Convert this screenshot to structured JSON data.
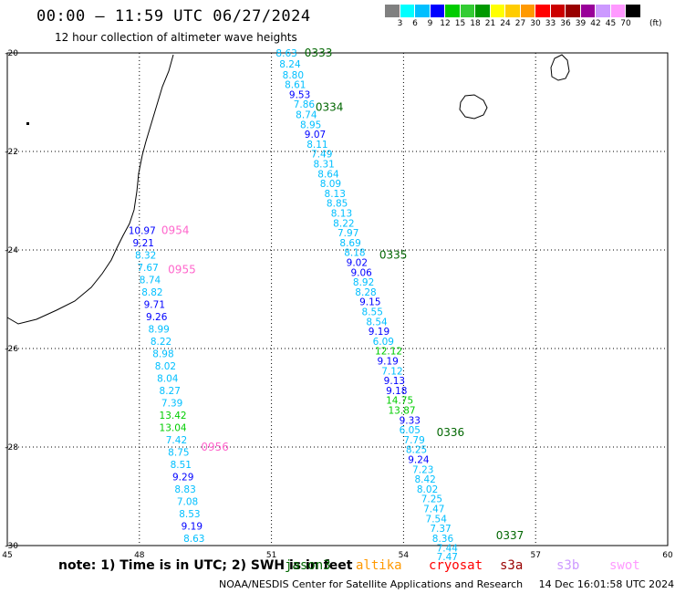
{
  "title": "00:00 – 11:59 UTC 06/27/2024",
  "subtitle": "12 hour collection of altimeter wave heights",
  "legend": {
    "ticks": [
      "3",
      "6",
      "9",
      "12",
      "15",
      "18",
      "21",
      "24",
      "27",
      "30",
      "33",
      "36",
      "39",
      "42",
      "45",
      "70"
    ],
    "unit": "(ft)",
    "colors": [
      "#808080",
      "#00ffff",
      "#00bfff",
      "#0000ff",
      "#00cc00",
      "#33cc33",
      "#009900",
      "#ffff00",
      "#ffcc00",
      "#ff9900",
      "#ff0000",
      "#cc0000",
      "#990000",
      "#990099",
      "#cc99ff",
      "#ff99ff",
      "#000000"
    ]
  },
  "note": "note:  1) Time is in UTC;  2) SWH is in feet",
  "satellites": [
    {
      "name": "jason3",
      "color": "#006600"
    },
    {
      "name": "altika",
      "color": "#ff9900"
    },
    {
      "name": "cryosat",
      "color": "#ff0000"
    },
    {
      "name": "s3a",
      "color": "#990000"
    },
    {
      "name": "s3b",
      "color": "#cc99ff"
    },
    {
      "name": "swot",
      "color": "#ff99ff"
    }
  ],
  "footer": {
    "agency": "NOAA/NESDIS Center for Satellite Applications and Research",
    "timestamp": "14 Dec 16:01:58 UTC 2024"
  },
  "map": {
    "lon_ticks": [
      "45",
      "48",
      "51",
      "54",
      "57",
      "60"
    ],
    "lat_ticks": [
      "-20",
      "-22",
      "-24",
      "-26",
      "-28",
      "-30"
    ]
  },
  "tracks": [
    {
      "satellite": "jason3",
      "color": "#006600",
      "time_labels": [
        {
          "lat": -20.0,
          "lon": 51.75,
          "text": "0333"
        },
        {
          "lat": -21.1,
          "lon": 52.0,
          "text": "0334"
        },
        {
          "lat": -24.1,
          "lon": 53.45,
          "text": "0335"
        },
        {
          "lat": -27.7,
          "lon": 54.75,
          "text": "0336"
        },
        {
          "lat": -29.8,
          "lon": 56.1,
          "text": "0337"
        }
      ],
      "points": [
        {
          "lat": -20.0,
          "lon": 51.1,
          "v": "8.63"
        },
        {
          "lat": -20.22,
          "lon": 51.18,
          "v": "8.24"
        },
        {
          "lat": -20.44,
          "lon": 51.25,
          "v": "8.80"
        },
        {
          "lat": -20.64,
          "lon": 51.3,
          "v": "8.61"
        },
        {
          "lat": -20.84,
          "lon": 51.4,
          "v": "9.53"
        },
        {
          "lat": -21.04,
          "lon": 51.5,
          "v": "7.86"
        },
        {
          "lat": -21.25,
          "lon": 51.55,
          "v": "8.74"
        },
        {
          "lat": -21.45,
          "lon": 51.65,
          "v": "8.95"
        },
        {
          "lat": -21.65,
          "lon": 51.75,
          "v": "9.07"
        },
        {
          "lat": -21.85,
          "lon": 51.8,
          "v": "8.11"
        },
        {
          "lat": -22.05,
          "lon": 51.9,
          "v": "7.49"
        },
        {
          "lat": -22.25,
          "lon": 51.95,
          "v": "8.31"
        },
        {
          "lat": -22.45,
          "lon": 52.05,
          "v": "8.64"
        },
        {
          "lat": -22.65,
          "lon": 52.1,
          "v": "8.09"
        },
        {
          "lat": -22.85,
          "lon": 52.2,
          "v": "8.13"
        },
        {
          "lat": -23.05,
          "lon": 52.25,
          "v": "8.85"
        },
        {
          "lat": -23.25,
          "lon": 52.35,
          "v": "8.13"
        },
        {
          "lat": -23.45,
          "lon": 52.4,
          "v": "8.22"
        },
        {
          "lat": -23.65,
          "lon": 52.5,
          "v": "7.97"
        },
        {
          "lat": -23.85,
          "lon": 52.55,
          "v": "8.69"
        },
        {
          "lat": -24.05,
          "lon": 52.65,
          "v": "8.18"
        },
        {
          "lat": -24.25,
          "lon": 52.7,
          "v": "9.02"
        },
        {
          "lat": -24.45,
          "lon": 52.8,
          "v": "9.06"
        },
        {
          "lat": -24.65,
          "lon": 52.85,
          "v": "8.92"
        },
        {
          "lat": -24.85,
          "lon": 52.9,
          "v": "8.28"
        },
        {
          "lat": -25.05,
          "lon": 53.0,
          "v": "9.15"
        },
        {
          "lat": -25.25,
          "lon": 53.05,
          "v": "8.55"
        },
        {
          "lat": -25.45,
          "lon": 53.15,
          "v": "8.54"
        },
        {
          "lat": -25.65,
          "lon": 53.2,
          "v": "9.19"
        },
        {
          "lat": -25.85,
          "lon": 53.3,
          "v": "6.09"
        },
        {
          "lat": -26.05,
          "lon": 53.35,
          "v": "12.12"
        },
        {
          "lat": -26.25,
          "lon": 53.4,
          "v": "9.19"
        },
        {
          "lat": -26.45,
          "lon": 53.5,
          "v": "7.12"
        },
        {
          "lat": -26.65,
          "lon": 53.55,
          "v": "9.13"
        },
        {
          "lat": -26.85,
          "lon": 53.6,
          "v": "9.18"
        },
        {
          "lat": -27.05,
          "lon": 53.6,
          "v": "14.75"
        },
        {
          "lat": -27.25,
          "lon": 53.65,
          "v": "13.87"
        },
        {
          "lat": -27.45,
          "lon": 53.9,
          "v": "9.33"
        },
        {
          "lat": -27.65,
          "lon": 53.9,
          "v": "6.05"
        },
        {
          "lat": -27.85,
          "lon": 54.0,
          "v": "7.79"
        },
        {
          "lat": -28.05,
          "lon": 54.05,
          "v": "8.25"
        },
        {
          "lat": -28.25,
          "lon": 54.1,
          "v": "9.24"
        },
        {
          "lat": -28.45,
          "lon": 54.2,
          "v": "7.23"
        },
        {
          "lat": -28.65,
          "lon": 54.25,
          "v": "8.42"
        },
        {
          "lat": -28.85,
          "lon": 54.3,
          "v": "8.02"
        },
        {
          "lat": -29.05,
          "lon": 54.4,
          "v": "7.25"
        },
        {
          "lat": -29.25,
          "lon": 54.45,
          "v": "7.47"
        },
        {
          "lat": -29.45,
          "lon": 54.5,
          "v": "7.54"
        },
        {
          "lat": -29.65,
          "lon": 54.6,
          "v": "7.37"
        },
        {
          "lat": -29.85,
          "lon": 54.65,
          "v": "8.36"
        },
        {
          "lat": -30.05,
          "lon": 54.75,
          "v": "7.44"
        },
        {
          "lat": -30.22,
          "lon": 54.75,
          "v": "7.47"
        }
      ]
    },
    {
      "satellite": "swot",
      "color": "#ff66cc",
      "time_labels": [
        {
          "lat": -23.6,
          "lon": 48.5,
          "text": "0954"
        },
        {
          "lat": -24.4,
          "lon": 48.65,
          "text": "0955"
        },
        {
          "lat": -28.0,
          "lon": 49.4,
          "text": "0956"
        }
      ],
      "points": [
        {
          "lat": -23.6,
          "lon": 47.75,
          "v": "10.97"
        },
        {
          "lat": -23.85,
          "lon": 47.85,
          "v": "9.21"
        },
        {
          "lat": -24.1,
          "lon": 47.9,
          "v": "8.32"
        },
        {
          "lat": -24.35,
          "lon": 47.95,
          "v": "7.67"
        },
        {
          "lat": -24.6,
          "lon": 48.0,
          "v": "8.74"
        },
        {
          "lat": -24.85,
          "lon": 48.05,
          "v": "8.82"
        },
        {
          "lat": -25.1,
          "lon": 48.1,
          "v": "9.71"
        },
        {
          "lat": -25.35,
          "lon": 48.15,
          "v": "9.26"
        },
        {
          "lat": -25.6,
          "lon": 48.2,
          "v": "8.99"
        },
        {
          "lat": -25.85,
          "lon": 48.25,
          "v": "8.22"
        },
        {
          "lat": -26.1,
          "lon": 48.3,
          "v": "8.98"
        },
        {
          "lat": -26.35,
          "lon": 48.35,
          "v": "8.02"
        },
        {
          "lat": -26.6,
          "lon": 48.4,
          "v": "8.04"
        },
        {
          "lat": -26.85,
          "lon": 48.45,
          "v": "8.27"
        },
        {
          "lat": -27.1,
          "lon": 48.5,
          "v": "7.39"
        },
        {
          "lat": -27.35,
          "lon": 48.45,
          "v": "13.42"
        },
        {
          "lat": -27.6,
          "lon": 48.45,
          "v": "13.04"
        },
        {
          "lat": -27.85,
          "lon": 48.6,
          "v": "7.42"
        },
        {
          "lat": -28.1,
          "lon": 48.65,
          "v": "8.75"
        },
        {
          "lat": -28.35,
          "lon": 48.7,
          "v": "8.51"
        },
        {
          "lat": -28.6,
          "lon": 48.75,
          "v": "9.29"
        },
        {
          "lat": -28.85,
          "lon": 48.8,
          "v": "8.83"
        },
        {
          "lat": -29.1,
          "lon": 48.85,
          "v": "7.08"
        },
        {
          "lat": -29.35,
          "lon": 48.9,
          "v": "8.53"
        },
        {
          "lat": -29.6,
          "lon": 48.95,
          "v": "9.19"
        },
        {
          "lat": -29.85,
          "lon": 49.0,
          "v": "8.63"
        }
      ]
    }
  ]
}
